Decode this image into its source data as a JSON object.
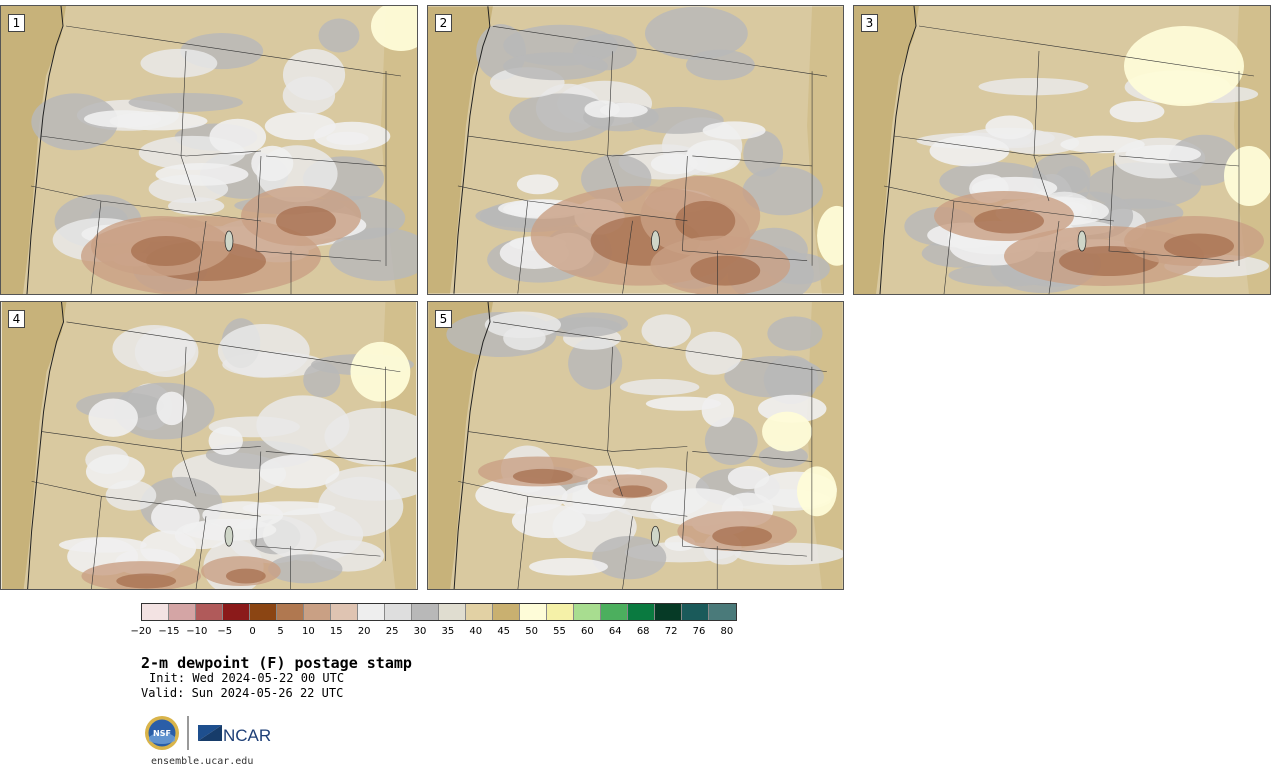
{
  "panels": [
    {
      "label": "1"
    },
    {
      "label": "2"
    },
    {
      "label": "3"
    },
    {
      "label": "4"
    },
    {
      "label": "5"
    }
  ],
  "colorbar": {
    "colors": [
      "#f3e3e3",
      "#d4a5a5",
      "#b05a5a",
      "#8b1a1a",
      "#8b4513",
      "#b07850",
      "#c9a084",
      "#dfc4b2",
      "#eeeeee",
      "#dedede",
      "#b8b8b8",
      "#e0ddd0",
      "#e2d1a4",
      "#c9b070",
      "#fefcd8",
      "#f5f1a8",
      "#a8dd90",
      "#4caf5e",
      "#0a7a40",
      "#063a26",
      "#1a5a5a",
      "#4a7a7a"
    ],
    "ticks": [
      "−20",
      "−15",
      "−10",
      "−5",
      "0",
      "5",
      "10",
      "15",
      "20",
      "25",
      "30",
      "35",
      "40",
      "45",
      "50",
      "55",
      "60",
      "64",
      "68",
      "72",
      "76",
      "80"
    ]
  },
  "title": "2-m dewpoint (F) postage stamp",
  "init": "Init: Wed 2024-05-22 00 UTC",
  "valid": "Valid: Sun 2024-05-26 22 UTC",
  "logo": {
    "nsf_text": "NSF",
    "ncar_text": "NCAR"
  },
  "website": "ensemble.ucar.edu"
}
